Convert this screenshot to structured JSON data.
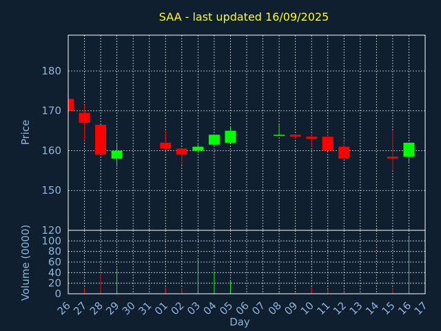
{
  "chart_data": {
    "title": "SAA - last updated 16/09/2025",
    "type": "candlestick",
    "xlabel": "Day",
    "x_ticks": [
      "26",
      "27",
      "28",
      "29",
      "30",
      "31",
      "01",
      "02",
      "03",
      "04",
      "05",
      "06",
      "07",
      "08",
      "09",
      "10",
      "11",
      "12",
      "13",
      "14",
      "15",
      "16",
      "17"
    ],
    "colors": {
      "up": "#00ff00",
      "down": "#ff0000",
      "title": "#ffff00",
      "tick": "#8fb3d9",
      "background": "#0f1f30"
    },
    "price": {
      "ylabel": "Price",
      "ylim": [
        140,
        189
      ],
      "y_ticks": [
        150,
        160,
        170,
        180
      ],
      "grid": true,
      "candles": [
        {
          "day": "26",
          "open": 173.0,
          "high": 173.0,
          "low": 170.0,
          "close": 170.0
        },
        {
          "day": "27",
          "open": 169.5,
          "high": 171.5,
          "low": 162.5,
          "close": 167.0
        },
        {
          "day": "28",
          "open": 166.5,
          "high": 166.5,
          "low": 159.0,
          "close": 159.0
        },
        {
          "day": "29",
          "open": 158.0,
          "high": 162.0,
          "low": 156.0,
          "close": 160.0
        },
        {
          "day": "01",
          "open": 162.0,
          "high": 165.0,
          "low": 160.0,
          "close": 160.5
        },
        {
          "day": "02",
          "open": 160.5,
          "high": 160.5,
          "low": 156.5,
          "close": 159.0
        },
        {
          "day": "03",
          "open": 160.0,
          "high": 162.0,
          "low": 159.5,
          "close": 161.0
        },
        {
          "day": "04",
          "open": 161.5,
          "high": 164.0,
          "low": 161.0,
          "close": 164.0
        },
        {
          "day": "05",
          "open": 162.0,
          "high": 166.0,
          "low": 162.0,
          "close": 165.0
        },
        {
          "day": "08",
          "open": 164.0,
          "high": 166.5,
          "low": 164.0,
          "close": 164.0
        },
        {
          "day": "09",
          "open": 164.0,
          "high": 164.0,
          "low": 163.0,
          "close": 163.5
        },
        {
          "day": "10",
          "open": 163.5,
          "high": 164.0,
          "low": 161.0,
          "close": 163.0
        },
        {
          "day": "11",
          "open": 163.5,
          "high": 164.0,
          "low": 160.0,
          "close": 160.0
        },
        {
          "day": "12",
          "open": 161.0,
          "high": 162.5,
          "low": 158.0,
          "close": 158.0
        },
        {
          "day": "15",
          "open": 158.5,
          "high": 165.0,
          "low": 155.0,
          "close": 158.0
        },
        {
          "day": "16",
          "open": 158.5,
          "high": 162.0,
          "low": 157.0,
          "close": 162.0
        }
      ]
    },
    "volume": {
      "ylabel": "Volume (0000)",
      "ylim": [
        0,
        120
      ],
      "y_ticks": [
        0,
        20,
        40,
        60,
        80,
        100,
        120
      ],
      "grid": true,
      "bars": [
        {
          "day": "26",
          "value": 0,
          "dir": "down"
        },
        {
          "day": "27",
          "value": 10,
          "dir": "down"
        },
        {
          "day": "28",
          "value": 38,
          "dir": "down"
        },
        {
          "day": "29",
          "value": 48,
          "dir": "up"
        },
        {
          "day": "01",
          "value": 12,
          "dir": "down"
        },
        {
          "day": "02",
          "value": 10,
          "dir": "down"
        },
        {
          "day": "03",
          "value": 65,
          "dir": "up"
        },
        {
          "day": "04",
          "value": 42,
          "dir": "up"
        },
        {
          "day": "05",
          "value": 25,
          "dir": "up"
        },
        {
          "day": "08",
          "value": 2,
          "dir": "up"
        },
        {
          "day": "09",
          "value": 2,
          "dir": "down"
        },
        {
          "day": "10",
          "value": 12,
          "dir": "down"
        },
        {
          "day": "11",
          "value": 8,
          "dir": "down"
        },
        {
          "day": "12",
          "value": 3,
          "dir": "down"
        },
        {
          "day": "15",
          "value": 10,
          "dir": "down"
        },
        {
          "day": "16",
          "value": 107,
          "dir": "up"
        }
      ]
    }
  }
}
